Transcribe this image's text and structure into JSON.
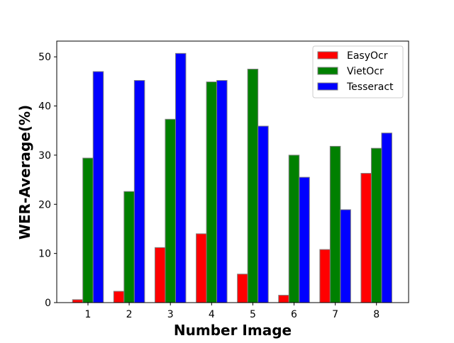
{
  "chart_data": {
    "type": "bar",
    "title": "",
    "xlabel": "Number Image",
    "ylabel": "WER-Average(%)",
    "categories": [
      "1",
      "2",
      "3",
      "4",
      "5",
      "6",
      "7",
      "8"
    ],
    "ylim": [
      0,
      53.2
    ],
    "yticks": [
      0,
      10,
      20,
      30,
      40,
      50
    ],
    "grid": false,
    "legend_position": "top-right",
    "series": [
      {
        "name": "EasyOcr",
        "color": "#ff0000",
        "values": [
          0.6,
          2.3,
          11.2,
          14.0,
          5.8,
          1.5,
          10.8,
          26.3
        ]
      },
      {
        "name": "VietOcr",
        "color": "#008000",
        "values": [
          29.4,
          22.6,
          37.3,
          44.9,
          47.5,
          30.0,
          31.8,
          31.4
        ]
      },
      {
        "name": "Tesseract",
        "color": "#0000ff",
        "values": [
          47.0,
          45.2,
          50.7,
          45.2,
          35.9,
          25.5,
          18.9,
          34.5
        ]
      }
    ],
    "bar_edge_color": "#808080"
  }
}
